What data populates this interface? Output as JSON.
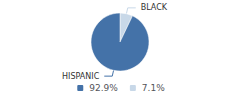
{
  "chart_data": {
    "type": "pie",
    "categories": [
      "BLACK",
      "HISPANIC"
    ],
    "values": [
      7.1,
      92.9
    ],
    "value_labels": [
      "7.1%",
      "92.9%"
    ],
    "colors": [
      "#c8d8e8",
      "#4472a8"
    ],
    "legend": "bottom"
  }
}
